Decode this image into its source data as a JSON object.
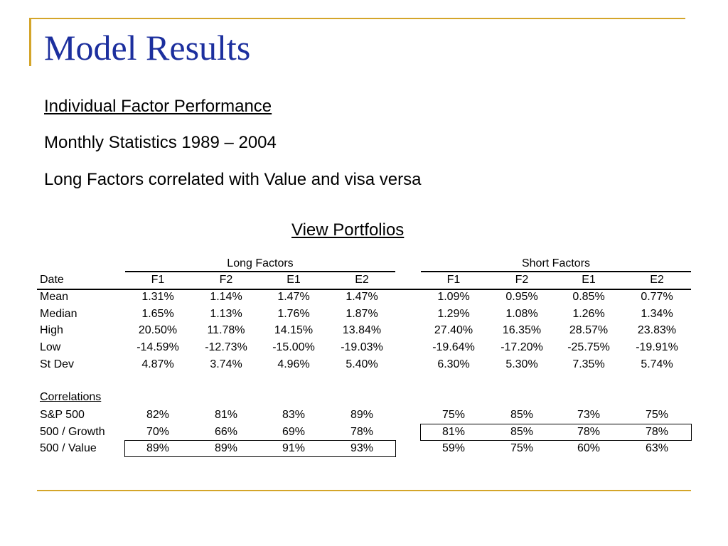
{
  "slide": {
    "title": "Model Results",
    "bullets": [
      "Individual Factor Performance",
      "Monthly Statistics 1989 – 2004",
      "Long Factors correlated with Value and visa versa"
    ],
    "link": "View Portfolios"
  },
  "table": {
    "group_headers": {
      "long": "Long Factors",
      "short": "Short Factors"
    },
    "row_header": "Date",
    "long_columns": [
      "F1",
      "F2",
      "E1",
      "E2"
    ],
    "short_columns": [
      "F1",
      "F2",
      "E1",
      "E2"
    ],
    "stats_rows": [
      {
        "label": "Mean",
        "long": [
          "1.31%",
          "1.14%",
          "1.47%",
          "1.47%"
        ],
        "short": [
          "1.09%",
          "0.95%",
          "0.85%",
          "0.77%"
        ]
      },
      {
        "label": "Median",
        "long": [
          "1.65%",
          "1.13%",
          "1.76%",
          "1.87%"
        ],
        "short": [
          "1.29%",
          "1.08%",
          "1.26%",
          "1.34%"
        ]
      },
      {
        "label": "High",
        "long": [
          "20.50%",
          "11.78%",
          "14.15%",
          "13.84%"
        ],
        "short": [
          "27.40%",
          "16.35%",
          "28.57%",
          "23.83%"
        ]
      },
      {
        "label": "Low",
        "long": [
          "-14.59%",
          "-12.73%",
          "-15.00%",
          "-19.03%"
        ],
        "short": [
          "-19.64%",
          "-17.20%",
          "-25.75%",
          "-19.91%"
        ]
      },
      {
        "label": "St Dev",
        "long": [
          "4.87%",
          "3.74%",
          "4.96%",
          "5.40%"
        ],
        "short": [
          "6.30%",
          "5.30%",
          "7.35%",
          "5.74%"
        ]
      }
    ],
    "correlations_label": "Correlations",
    "correlation_rows": [
      {
        "label": "S&P 500",
        "long": [
          "82%",
          "81%",
          "83%",
          "89%"
        ],
        "short": [
          "75%",
          "85%",
          "73%",
          "75%"
        ]
      },
      {
        "label": "500 / Growth",
        "long": [
          "70%",
          "66%",
          "69%",
          "78%"
        ],
        "short": [
          "81%",
          "85%",
          "78%",
          "78%"
        ]
      },
      {
        "label": "500 / Value",
        "long": [
          "89%",
          "89%",
          "91%",
          "93%"
        ],
        "short": [
          "59%",
          "75%",
          "60%",
          "63%"
        ]
      }
    ]
  }
}
